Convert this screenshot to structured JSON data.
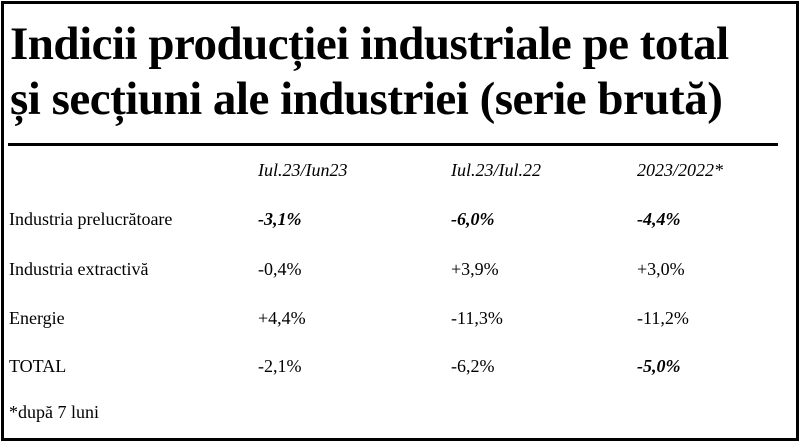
{
  "title": {
    "line1": "Indicii producției industriale pe total",
    "line2": "și secțiuni ale industriei (serie brută)"
  },
  "table": {
    "columns": [
      "Iul.23/Iun23",
      "Iul.23/Iul.22",
      "2023/2022*"
    ],
    "rows": [
      {
        "label": "Industria prelucrătoare",
        "values": [
          "-3,1%",
          "-6,0%",
          "-4,4%"
        ],
        "emphasis": [
          true,
          true,
          true
        ]
      },
      {
        "label": "Industria extractivă",
        "values": [
          "-0,4%",
          "+3,9%",
          "+3,0%"
        ],
        "emphasis": [
          false,
          false,
          false
        ]
      },
      {
        "label": "Energie",
        "values": [
          "+4,4%",
          "-11,3%",
          "-11,2%"
        ],
        "emphasis": [
          false,
          false,
          false
        ]
      },
      {
        "label": "TOTAL",
        "values": [
          "-2,1%",
          "-6,2%",
          "-5,0%"
        ],
        "emphasis": [
          false,
          false,
          true
        ]
      }
    ]
  },
  "footnote": "*după 7 luni"
}
